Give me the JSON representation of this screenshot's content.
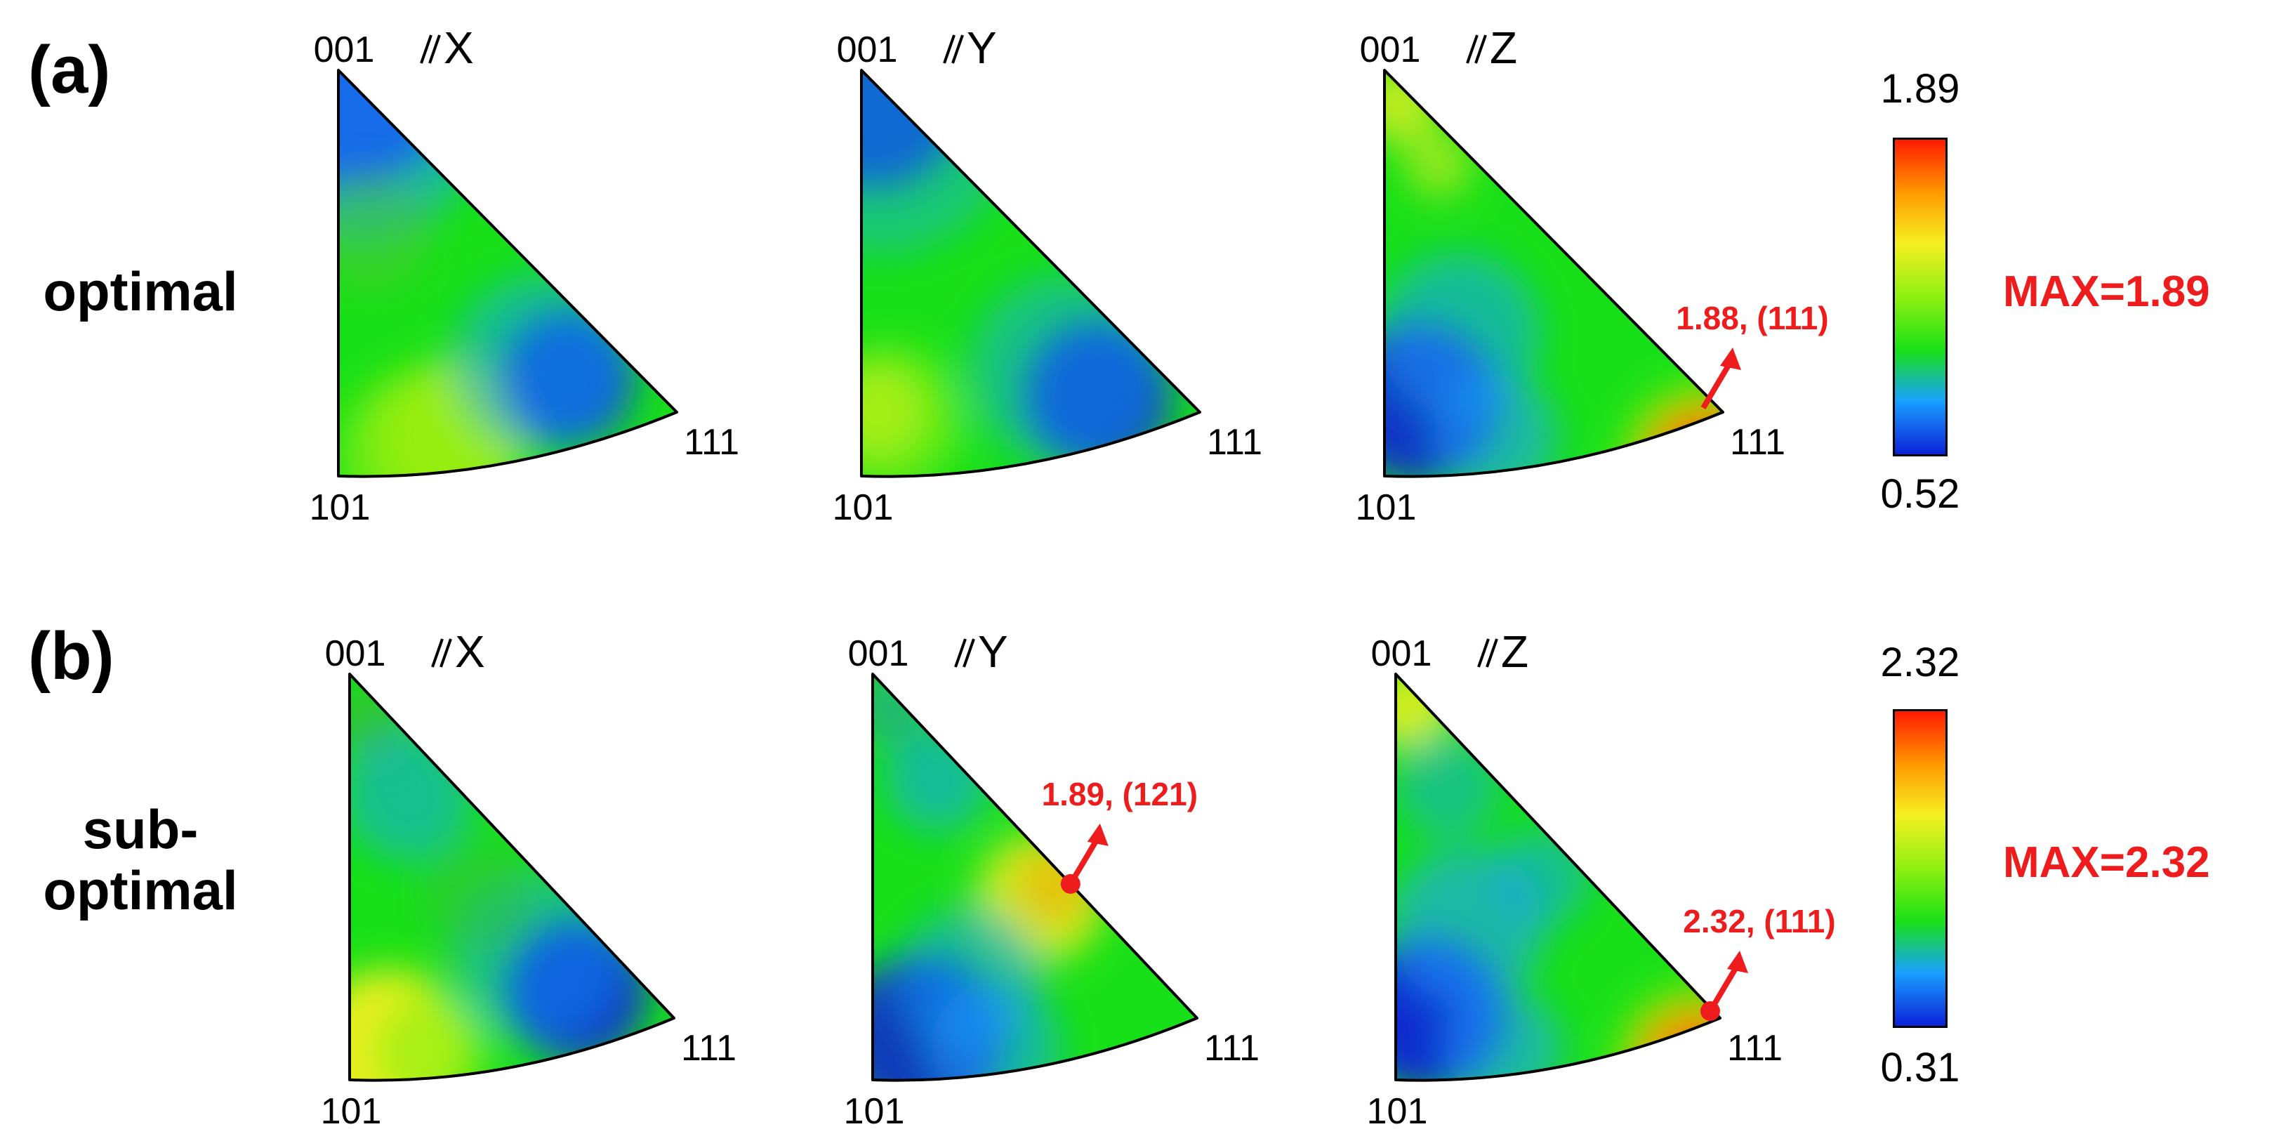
{
  "panels": [
    {
      "label": "(a)",
      "row_label_lines": [
        "optimal"
      ],
      "max_text": "MAX=1.89",
      "colorbar": {
        "max": "1.89",
        "min": "0.52"
      },
      "triangles": [
        {
          "direction": "//X",
          "dir_letter": "X",
          "corners": {
            "top": "001",
            "bottom": "101",
            "right": "111"
          }
        },
        {
          "direction": "//Y",
          "dir_letter": "Y",
          "corners": {
            "top": "001",
            "bottom": "101",
            "right": "111"
          }
        },
        {
          "direction": "//Z",
          "dir_letter": "Z",
          "corners": {
            "top": "001",
            "bottom": "101",
            "right": "111"
          },
          "annotation": {
            "text": "1.88, (111)",
            "value": 1.88,
            "hkl": "(111)"
          }
        }
      ]
    },
    {
      "label": "(b)",
      "row_label_lines": [
        "sub-",
        "optimal"
      ],
      "max_text": "MAX=2.32",
      "colorbar": {
        "max": "2.32",
        "min": "0.31"
      },
      "triangles": [
        {
          "direction": "//X",
          "dir_letter": "X",
          "corners": {
            "top": "001",
            "bottom": "101",
            "right": "111"
          }
        },
        {
          "direction": "//Y",
          "dir_letter": "Y",
          "corners": {
            "top": "001",
            "bottom": "101",
            "right": "111"
          },
          "annotation": {
            "text": "1.89, (121)",
            "value": 1.89,
            "hkl": "(121)"
          }
        },
        {
          "direction": "//Z",
          "dir_letter": "Z",
          "corners": {
            "top": "001",
            "bottom": "101",
            "right": "111"
          },
          "annotation": {
            "text": "2.32, (111)",
            "value": 2.32,
            "hkl": "(111)"
          }
        }
      ]
    }
  ],
  "colors": {
    "annotation": "#ee1c1c",
    "colormap": [
      "#0a22d8",
      "#1aa0ff",
      "#18e018",
      "#8ef010",
      "#f5f020",
      "#ff9a00",
      "#ff1a00"
    ]
  }
}
